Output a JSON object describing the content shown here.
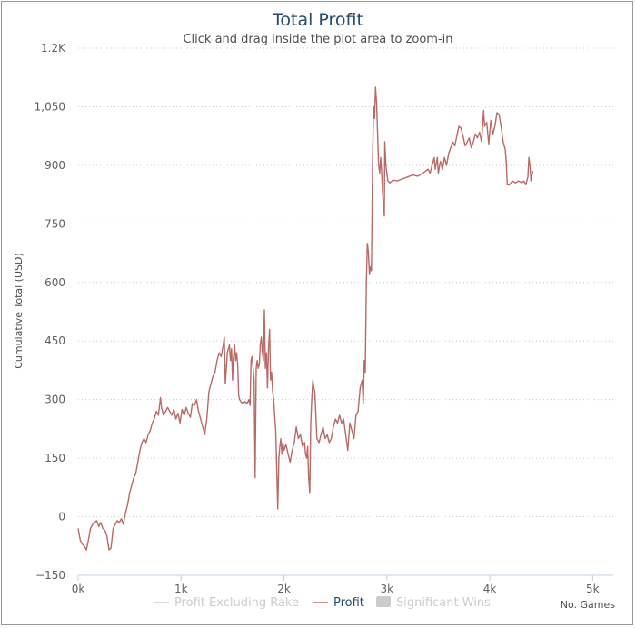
{
  "chart_data": {
    "type": "line",
    "title": "Total Profit",
    "subtitle": "Click and drag inside the plot area to zoom-in",
    "ylabel": "Cumulative Total (USD)",
    "xlabel_note": "No. Games",
    "xlim": [
      0,
      5200
    ],
    "ylim": [
      -150,
      1200
    ],
    "y_ticks": [
      -150,
      0,
      150,
      300,
      450,
      600,
      750,
      900,
      1050,
      1200
    ],
    "y_tick_labels": [
      "−150",
      "0",
      "150",
      "300",
      "450",
      "600",
      "750",
      "900",
      "1,050",
      "1.2K"
    ],
    "x_ticks": [
      0,
      1000,
      2000,
      3000,
      4000,
      5000
    ],
    "x_tick_labels": [
      "0k",
      "1k",
      "2k",
      "3k",
      "4k",
      "5k"
    ],
    "grid": "horizontal dotted",
    "legend_position": "bottom-center",
    "legend": [
      {
        "name": "Profit Excluding Rake",
        "active": false,
        "color": "#cccccc",
        "marker": "line"
      },
      {
        "name": "Profit",
        "active": true,
        "color": "#b86a66",
        "marker": "line"
      },
      {
        "name": "Significant Wins",
        "active": false,
        "color": "#cccccc",
        "marker": "box"
      }
    ],
    "series": [
      {
        "name": "Profit",
        "color": "#b86a66",
        "points": [
          [
            0,
            -30
          ],
          [
            20,
            -60
          ],
          [
            40,
            -70
          ],
          [
            60,
            -75
          ],
          [
            80,
            -85
          ],
          [
            100,
            -60
          ],
          [
            120,
            -30
          ],
          [
            140,
            -20
          ],
          [
            160,
            -15
          ],
          [
            180,
            -10
          ],
          [
            200,
            -25
          ],
          [
            220,
            -15
          ],
          [
            240,
            -30
          ],
          [
            260,
            -35
          ],
          [
            280,
            -50
          ],
          [
            300,
            -85
          ],
          [
            320,
            -80
          ],
          [
            340,
            -30
          ],
          [
            360,
            -20
          ],
          [
            380,
            -10
          ],
          [
            400,
            -15
          ],
          [
            420,
            -5
          ],
          [
            440,
            -20
          ],
          [
            460,
            10
          ],
          [
            480,
            30
          ],
          [
            500,
            60
          ],
          [
            520,
            80
          ],
          [
            540,
            100
          ],
          [
            560,
            110
          ],
          [
            580,
            140
          ],
          [
            600,
            170
          ],
          [
            620,
            190
          ],
          [
            640,
            200
          ],
          [
            660,
            190
          ],
          [
            680,
            210
          ],
          [
            700,
            220
          ],
          [
            720,
            240
          ],
          [
            740,
            250
          ],
          [
            760,
            270
          ],
          [
            780,
            260
          ],
          [
            800,
            305
          ],
          [
            810,
            280
          ],
          [
            830,
            260
          ],
          [
            850,
            270
          ],
          [
            870,
            280
          ],
          [
            890,
            270
          ],
          [
            910,
            260
          ],
          [
            930,
            275
          ],
          [
            950,
            250
          ],
          [
            970,
            265
          ],
          [
            990,
            240
          ],
          [
            1010,
            275
          ],
          [
            1030,
            260
          ],
          [
            1050,
            280
          ],
          [
            1070,
            265
          ],
          [
            1090,
            255
          ],
          [
            1110,
            290
          ],
          [
            1130,
            285
          ],
          [
            1150,
            300
          ],
          [
            1170,
            270
          ],
          [
            1190,
            250
          ],
          [
            1210,
            230
          ],
          [
            1230,
            210
          ],
          [
            1250,
            250
          ],
          [
            1270,
            320
          ],
          [
            1290,
            340
          ],
          [
            1310,
            360
          ],
          [
            1330,
            370
          ],
          [
            1350,
            400
          ],
          [
            1370,
            420
          ],
          [
            1390,
            410
          ],
          [
            1410,
            440
          ],
          [
            1420,
            460
          ],
          [
            1430,
            340
          ],
          [
            1450,
            420
          ],
          [
            1470,
            440
          ],
          [
            1480,
            400
          ],
          [
            1490,
            430
          ],
          [
            1500,
            350
          ],
          [
            1510,
            410
          ],
          [
            1520,
            440
          ],
          [
            1530,
            400
          ],
          [
            1540,
            420
          ],
          [
            1550,
            390
          ],
          [
            1560,
            310
          ],
          [
            1570,
            300
          ],
          [
            1580,
            295
          ],
          [
            1600,
            290
          ],
          [
            1620,
            295
          ],
          [
            1640,
            290
          ],
          [
            1660,
            300
          ],
          [
            1670,
            285
          ],
          [
            1680,
            400
          ],
          [
            1690,
            410
          ],
          [
            1700,
            380
          ],
          [
            1710,
            350
          ],
          [
            1720,
            100
          ],
          [
            1730,
            380
          ],
          [
            1740,
            400
          ],
          [
            1750,
            380
          ],
          [
            1760,
            390
          ],
          [
            1770,
            440
          ],
          [
            1780,
            460
          ],
          [
            1790,
            420
          ],
          [
            1800,
            400
          ],
          [
            1810,
            530
          ],
          [
            1820,
            380
          ],
          [
            1830,
            420
          ],
          [
            1840,
            330
          ],
          [
            1850,
            430
          ],
          [
            1860,
            480
          ],
          [
            1870,
            350
          ],
          [
            1880,
            370
          ],
          [
            1890,
            320
          ],
          [
            1900,
            300
          ],
          [
            1910,
            260
          ],
          [
            1920,
            220
          ],
          [
            1930,
            120
          ],
          [
            1940,
            20
          ],
          [
            1950,
            150
          ],
          [
            1960,
            180
          ],
          [
            1970,
            200
          ],
          [
            1980,
            160
          ],
          [
            1990,
            190
          ],
          [
            2000,
            170
          ],
          [
            2020,
            185
          ],
          [
            2040,
            160
          ],
          [
            2060,
            140
          ],
          [
            2080,
            170
          ],
          [
            2100,
            190
          ],
          [
            2120,
            230
          ],
          [
            2140,
            200
          ],
          [
            2160,
            210
          ],
          [
            2180,
            180
          ],
          [
            2200,
            190
          ],
          [
            2210,
            160
          ],
          [
            2220,
            150
          ],
          [
            2230,
            180
          ],
          [
            2240,
            100
          ],
          [
            2250,
            60
          ],
          [
            2260,
            240
          ],
          [
            2270,
            300
          ],
          [
            2280,
            350
          ],
          [
            2290,
            330
          ],
          [
            2300,
            320
          ],
          [
            2320,
            200
          ],
          [
            2340,
            190
          ],
          [
            2360,
            210
          ],
          [
            2380,
            230
          ],
          [
            2400,
            200
          ],
          [
            2420,
            210
          ],
          [
            2440,
            190
          ],
          [
            2460,
            200
          ],
          [
            2480,
            230
          ],
          [
            2500,
            250
          ],
          [
            2520,
            240
          ],
          [
            2540,
            260
          ],
          [
            2560,
            240
          ],
          [
            2580,
            250
          ],
          [
            2600,
            210
          ],
          [
            2620,
            170
          ],
          [
            2640,
            240
          ],
          [
            2660,
            220
          ],
          [
            2680,
            200
          ],
          [
            2700,
            260
          ],
          [
            2720,
            270
          ],
          [
            2740,
            330
          ],
          [
            2760,
            350
          ],
          [
            2770,
            290
          ],
          [
            2780,
            400
          ],
          [
            2790,
            370
          ],
          [
            2800,
            600
          ],
          [
            2810,
            700
          ],
          [
            2820,
            680
          ],
          [
            2830,
            620
          ],
          [
            2840,
            640
          ],
          [
            2850,
            630
          ],
          [
            2860,
            900
          ],
          [
            2870,
            1050
          ],
          [
            2880,
            1020
          ],
          [
            2890,
            1100
          ],
          [
            2900,
            1060
          ],
          [
            2910,
            980
          ],
          [
            2920,
            900
          ],
          [
            2930,
            880
          ],
          [
            2940,
            920
          ],
          [
            2950,
            880
          ],
          [
            2960,
            820
          ],
          [
            2970,
            790
          ],
          [
            2975,
            770
          ],
          [
            2980,
            960
          ],
          [
            2990,
            900
          ],
          [
            3000,
            880
          ],
          [
            3010,
            860
          ],
          [
            3030,
            855
          ],
          [
            3060,
            862
          ],
          [
            3100,
            860
          ],
          [
            3150,
            865
          ],
          [
            3200,
            870
          ],
          [
            3250,
            875
          ],
          [
            3300,
            872
          ],
          [
            3350,
            880
          ],
          [
            3400,
            890
          ],
          [
            3420,
            880
          ],
          [
            3440,
            900
          ],
          [
            3460,
            920
          ],
          [
            3470,
            890
          ],
          [
            3490,
            920
          ],
          [
            3500,
            880
          ],
          [
            3520,
            910
          ],
          [
            3540,
            890
          ],
          [
            3560,
            920
          ],
          [
            3580,
            900
          ],
          [
            3600,
            930
          ],
          [
            3620,
            945
          ],
          [
            3640,
            960
          ],
          [
            3660,
            950
          ],
          [
            3680,
            975
          ],
          [
            3700,
            1000
          ],
          [
            3720,
            995
          ],
          [
            3740,
            975
          ],
          [
            3760,
            950
          ],
          [
            3780,
            960
          ],
          [
            3800,
            970
          ],
          [
            3820,
            945
          ],
          [
            3840,
            960
          ],
          [
            3860,
            980
          ],
          [
            3880,
            970
          ],
          [
            3900,
            985
          ],
          [
            3920,
            960
          ],
          [
            3940,
            1040
          ],
          [
            3950,
            1000
          ],
          [
            3970,
            1010
          ],
          [
            3990,
            955
          ],
          [
            4010,
            1015
          ],
          [
            4030,
            980
          ],
          [
            4050,
            1000
          ],
          [
            4070,
            1035
          ],
          [
            4090,
            1030
          ],
          [
            4110,
            1000
          ],
          [
            4130,
            960
          ],
          [
            4150,
            940
          ],
          [
            4160,
            910
          ],
          [
            4170,
            850
          ],
          [
            4190,
            850
          ],
          [
            4220,
            860
          ],
          [
            4250,
            855
          ],
          [
            4280,
            860
          ],
          [
            4310,
            855
          ],
          [
            4330,
            860
          ],
          [
            4350,
            850
          ],
          [
            4370,
            870
          ],
          [
            4380,
            920
          ],
          [
            4390,
            900
          ],
          [
            4400,
            860
          ],
          [
            4410,
            875
          ],
          [
            4420,
            885
          ]
        ]
      }
    ]
  }
}
